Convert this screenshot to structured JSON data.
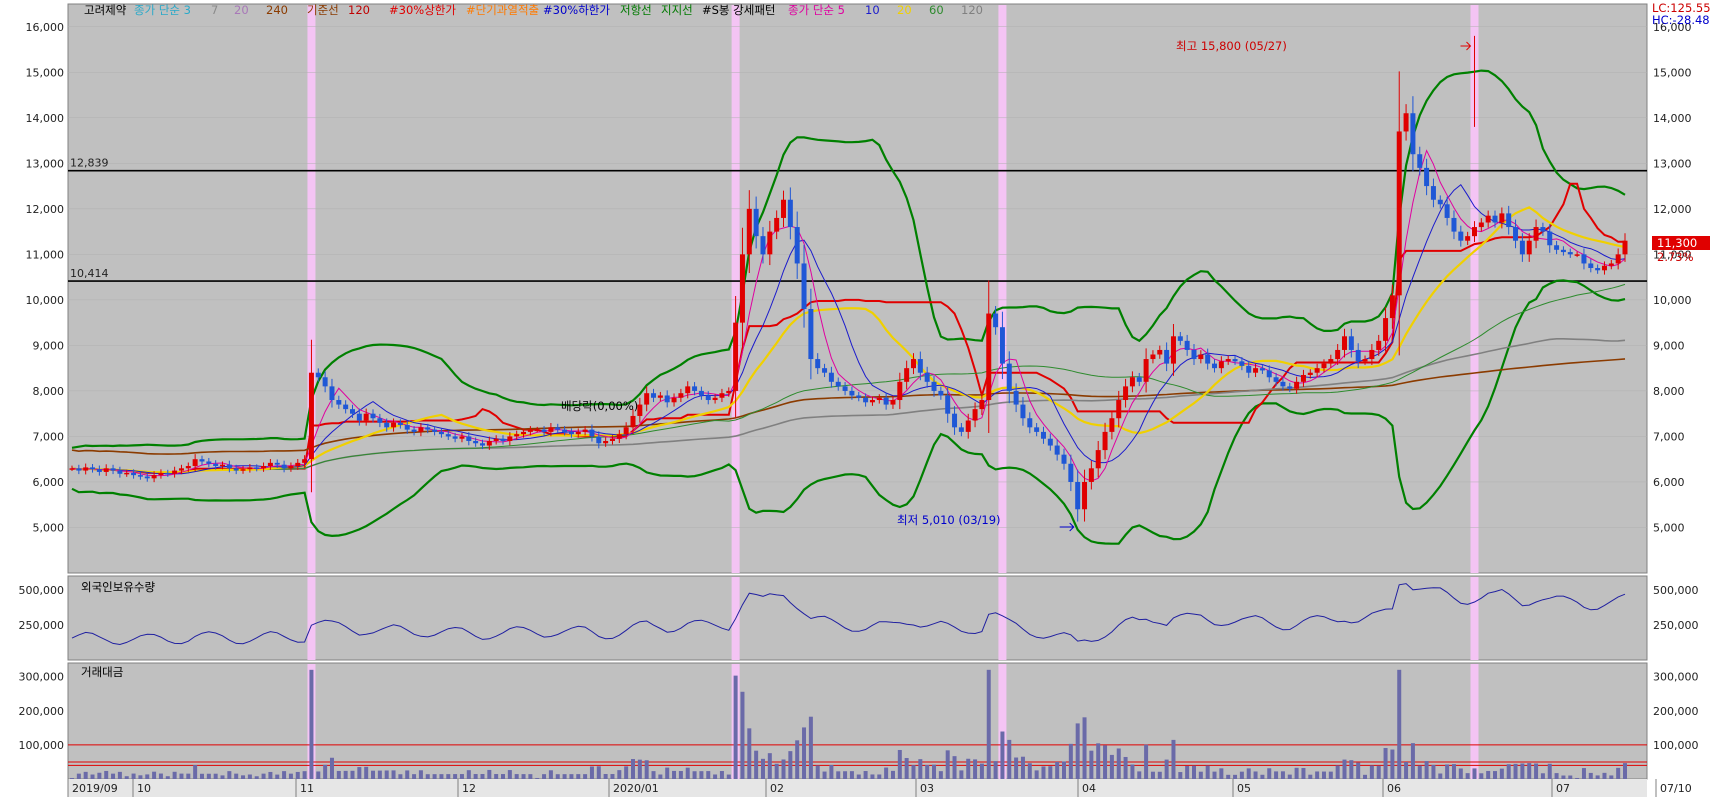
{
  "chart_data": {
    "type": "candlestick",
    "legend_main": [
      {
        "text": "고려제약",
        "color": "#000000"
      },
      {
        "text": "종가 단순 3",
        "color": "#2aa9c9"
      },
      {
        "text": "7",
        "color": "#8a8a8a"
      },
      {
        "text": "20",
        "color": "#a878b8"
      },
      {
        "text": "240",
        "color": "#8b3b00"
      },
      {
        "text": "기준선",
        "color": "#8b3b00"
      },
      {
        "text": "120",
        "color": "#c00000"
      },
      {
        "text": "#30%상한가",
        "color": "#e00000"
      },
      {
        "text": "#단기과열적출",
        "color": "#ff7a00"
      },
      {
        "text": "#30%하한가",
        "color": "#0000cc"
      },
      {
        "text": "저항선",
        "color": "#007a00"
      },
      {
        "text": "지지선",
        "color": "#007a00"
      },
      {
        "text": "#S봉 강세패턴",
        "color": "#000000"
      },
      {
        "text": "종가 단순 5",
        "color": "#e000a0"
      },
      {
        "text": "10",
        "color": "#1b1bcc"
      },
      {
        "text": "20",
        "color": "#f0d000"
      },
      {
        "text": "60",
        "color": "#2e8b2e"
      },
      {
        "text": "120",
        "color": "#808080"
      }
    ],
    "price_axis": {
      "min": 4000,
      "max": 16500,
      "ticks": [
        5000,
        6000,
        7000,
        8000,
        9000,
        10000,
        11000,
        12000,
        13000,
        14000,
        15000,
        16000
      ],
      "labels": [
        "5,000",
        "6,000",
        "7,000",
        "8,000",
        "9,000",
        "10,000",
        "11,000",
        "12,000",
        "13,000",
        "14,000",
        "15,000",
        "16,000"
      ]
    },
    "hlines": [
      {
        "value": 12839,
        "label": "12,839"
      },
      {
        "value": 10414,
        "label": "10,414"
      }
    ],
    "annotations": {
      "high": "최고 15,800 (05/27)",
      "low": "최저 5,010 (03/19)",
      "dividend": "배당락(0,00%)",
      "lc": "LC:125.55",
      "hc": "HC:-28.48",
      "last_price": "11,300",
      "last_change": "2.73%"
    },
    "x_labels": [
      "2019/09",
      "10",
      "11",
      "12",
      "2020/01",
      "02",
      "03",
      "04",
      "05",
      "06",
      "07",
      "07/10"
    ],
    "foreign_panel": {
      "title": "외국인보유수량",
      "ticks": [
        250000,
        500000
      ],
      "labels": [
        "250,000",
        "500,000"
      ],
      "max": 600000
    },
    "value_panel": {
      "title": "거래대금",
      "ticks": [
        100000,
        200000,
        300000
      ],
      "labels": [
        "100,000",
        "200,000",
        "300,000"
      ],
      "max": 340000
    },
    "closes": [
      6300,
      6250,
      6320,
      6280,
      6220,
      6300,
      6250,
      6180,
      6200,
      6150,
      6120,
      6080,
      6150,
      6200,
      6180,
      6250,
      6300,
      6350,
      6500,
      6450,
      6400,
      6350,
      6380,
      6300,
      6250,
      6280,
      6320,
      6300,
      6350,
      6420,
      6380,
      6300,
      6350,
      6420,
      6500,
      8400,
      8300,
      8100,
      7800,
      7700,
      7600,
      7500,
      7350,
      7500,
      7400,
      7300,
      7200,
      7300,
      7250,
      7150,
      7100,
      7200,
      7150,
      7100,
      7050,
      7000,
      6950,
      7000,
      6900,
      6850,
      6800,
      6900,
      6950,
      6900,
      7000,
      7050,
      7100,
      7150,
      7150,
      7100,
      7200,
      7150,
      7100,
      7050,
      7100,
      7150,
      7000,
      6850,
      6900,
      6950,
      7050,
      7200,
      7450,
      7700,
      7950,
      7850,
      7900,
      7750,
      7850,
      7950,
      8100,
      8000,
      7900,
      7800,
      7850,
      7950,
      8000,
      9500,
      11000,
      12000,
      11400,
      11000,
      11500,
      11800,
      12200,
      11600,
      10800,
      9800,
      8700,
      8500,
      8400,
      8200,
      8100,
      8000,
      7900,
      7850,
      7750,
      7800,
      7850,
      7700,
      7800,
      8200,
      8500,
      8700,
      8400,
      8200,
      8000,
      7900,
      7500,
      7200,
      7100,
      7350,
      7600,
      7800,
      9700,
      9400,
      8600,
      8000,
      7700,
      7400,
      7200,
      7100,
      6950,
      6800,
      6600,
      6400,
      6000,
      5400,
      6000,
      6300,
      6700,
      7100,
      7400,
      7800,
      8100,
      8300,
      8200,
      8700,
      8800,
      8900,
      8600,
      9200,
      9100,
      8900,
      8700,
      8800,
      8600,
      8500,
      8650,
      8700,
      8650,
      8550,
      8400,
      8500,
      8450,
      8300,
      8200,
      8100,
      8050,
      8200,
      8350,
      8400,
      8500,
      8600,
      8700,
      8900,
      9200,
      8900,
      8650,
      8700,
      8900,
      9100,
      9600,
      10100,
      13700,
      14100,
      13200,
      12900,
      12500,
      12200,
      12100,
      11800,
      11500,
      11300,
      11400,
      11600,
      11700,
      11850,
      11700,
      11900,
      11600,
      11300,
      11000,
      11300,
      11600,
      11500,
      11200,
      11100,
      11050,
      11000,
      11000,
      10800,
      10700,
      10650,
      10750,
      10800,
      11000,
      11300
    ]
  }
}
